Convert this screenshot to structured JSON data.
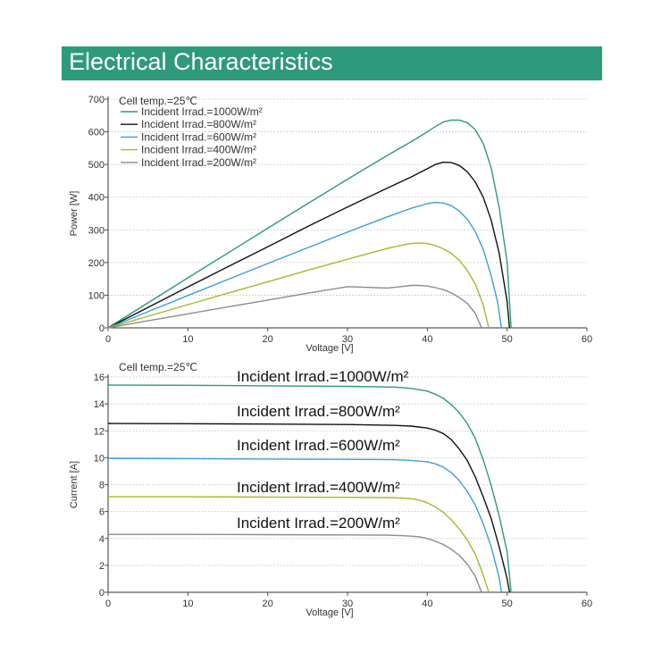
{
  "header": {
    "title": "Electrical Characteristics"
  },
  "colors": {
    "header_bg": "#2e9a7c",
    "series": [
      "#2e9a7c",
      "#111111",
      "#3a9fd8",
      "#9cbf2a",
      "#8c8c8c"
    ]
  },
  "chart_data": [
    {
      "type": "line",
      "title": "",
      "note": "Cell temp.=25℃",
      "xlabel": "Voltage [V]",
      "ylabel": "Power [W]",
      "xlim": [
        0,
        60
      ],
      "ylim": [
        0,
        700
      ],
      "xticks": [
        0,
        10,
        20,
        30,
        40,
        50,
        60
      ],
      "yticks": [
        0,
        100,
        200,
        300,
        400,
        500,
        600,
        700
      ],
      "legend_position": "top-left",
      "series": [
        {
          "name": "Incident Irrad.=1000W/m²",
          "x": [
            0,
            5,
            10,
            15,
            20,
            25,
            30,
            35,
            38,
            40,
            41,
            42,
            43,
            44,
            45,
            46,
            47,
            48,
            49,
            50,
            50.5
          ],
          "y": [
            0,
            76.5,
            153,
            229,
            305,
            380,
            455,
            528,
            570,
            600,
            616,
            630,
            636,
            636,
            628,
            607,
            565,
            490,
            370,
            200,
            0
          ]
        },
        {
          "name": "Incident Irrad.=800W/m²",
          "x": [
            0,
            5,
            10,
            15,
            20,
            25,
            30,
            35,
            38,
            40,
            41,
            42,
            43,
            44,
            45,
            46,
            47,
            48,
            49,
            50,
            50.3
          ],
          "y": [
            0,
            62.5,
            125,
            187,
            248,
            310,
            370,
            428,
            462,
            487,
            500,
            507,
            506,
            497,
            478,
            447,
            400,
            330,
            230,
            80,
            0
          ]
        },
        {
          "name": "Incident Irrad.=600W/m²",
          "x": [
            0,
            5,
            10,
            15,
            20,
            25,
            30,
            35,
            38,
            40,
            41,
            42,
            43,
            44,
            45,
            46,
            47,
            48,
            48.8,
            49.3
          ],
          "y": [
            0,
            49.5,
            99,
            148,
            197,
            245,
            293,
            340,
            366,
            380,
            384,
            382,
            374,
            358,
            333,
            295,
            240,
            160,
            80,
            0
          ]
        },
        {
          "name": "Incident Irrad.=400W/m²",
          "x": [
            0,
            5,
            10,
            15,
            20,
            25,
            30,
            35,
            37,
            38,
            39,
            40,
            41,
            42,
            43,
            44,
            45,
            46,
            47,
            47.7
          ],
          "y": [
            0,
            35.5,
            71,
            106,
            141,
            176,
            210,
            243,
            254,
            258,
            260,
            258,
            252,
            242,
            228,
            207,
            176,
            135,
            70,
            0
          ]
        },
        {
          "name": "Incident Irrad.=200W/m²",
          "x": [
            0,
            5,
            10,
            15,
            20,
            25,
            30,
            35,
            37,
            38,
            39,
            40,
            41,
            42,
            43,
            44,
            45,
            46,
            46.8
          ],
          "y": [
            0,
            21.5,
            43,
            64,
            85,
            106,
            126,
            122,
            127,
            130,
            130,
            128,
            123,
            117,
            107,
            93,
            75,
            45,
            0
          ]
        }
      ]
    },
    {
      "type": "line",
      "title": "",
      "note": "Cell temp.=25℃",
      "xlabel": "Voltage [V]",
      "ylabel": "Current [A]",
      "xlim": [
        0,
        60
      ],
      "ylim": [
        0,
        16
      ],
      "xticks": [
        0,
        10,
        20,
        30,
        40,
        50,
        60
      ],
      "yticks": [
        0,
        2,
        4,
        6,
        8,
        10,
        12,
        14,
        16
      ],
      "legend_position": "inline",
      "series": [
        {
          "name": "Incident Irrad.=1000W/m²",
          "x": [
            0,
            10,
            20,
            30,
            36,
            38,
            40,
            41,
            42,
            43,
            44,
            45,
            46,
            47,
            48,
            49,
            50,
            50.5
          ],
          "y": [
            15.4,
            15.38,
            15.34,
            15.3,
            15.25,
            15.15,
            14.95,
            14.72,
            14.42,
            13.95,
            13.35,
            12.55,
            11.45,
            9.85,
            7.95,
            5.7,
            3.0,
            0
          ]
        },
        {
          "name": "Incident Irrad.=800W/m²",
          "x": [
            0,
            10,
            20,
            30,
            36,
            38,
            40,
            41,
            42,
            43,
            44,
            45,
            46,
            47,
            48,
            49,
            50,
            50.3
          ],
          "y": [
            12.55,
            12.53,
            12.5,
            12.47,
            12.4,
            12.35,
            12.2,
            12.05,
            11.8,
            11.35,
            10.65,
            9.8,
            8.6,
            7.1,
            5.5,
            3.4,
            1.0,
            0
          ]
        },
        {
          "name": "Incident Irrad.=600W/m²",
          "x": [
            0,
            10,
            20,
            30,
            36,
            38,
            40,
            41,
            42,
            43,
            44,
            45,
            46,
            47,
            48,
            49,
            49.3
          ],
          "y": [
            9.95,
            9.93,
            9.9,
            9.88,
            9.85,
            9.8,
            9.7,
            9.55,
            9.3,
            8.9,
            8.3,
            7.5,
            6.5,
            5.1,
            3.4,
            1.1,
            0
          ]
        },
        {
          "name": "Incident Irrad.=400W/m²",
          "x": [
            0,
            10,
            20,
            30,
            35,
            37,
            38,
            39,
            40,
            41,
            42,
            43,
            44,
            45,
            46,
            47,
            47.7
          ],
          "y": [
            7.1,
            7.1,
            7.08,
            7.06,
            7.04,
            7.0,
            6.95,
            6.85,
            6.65,
            6.35,
            5.95,
            5.4,
            4.7,
            3.9,
            2.85,
            1.3,
            0
          ]
        },
        {
          "name": "Incident Irrad.=200W/m²",
          "x": [
            0,
            10,
            20,
            30,
            35,
            37,
            38,
            39,
            40,
            41,
            42,
            43,
            44,
            45,
            46,
            46.8
          ],
          "y": [
            4.3,
            4.3,
            4.28,
            4.26,
            4.24,
            4.2,
            4.17,
            4.12,
            4.0,
            3.8,
            3.55,
            3.2,
            2.75,
            2.1,
            1.2,
            0
          ]
        }
      ]
    }
  ]
}
